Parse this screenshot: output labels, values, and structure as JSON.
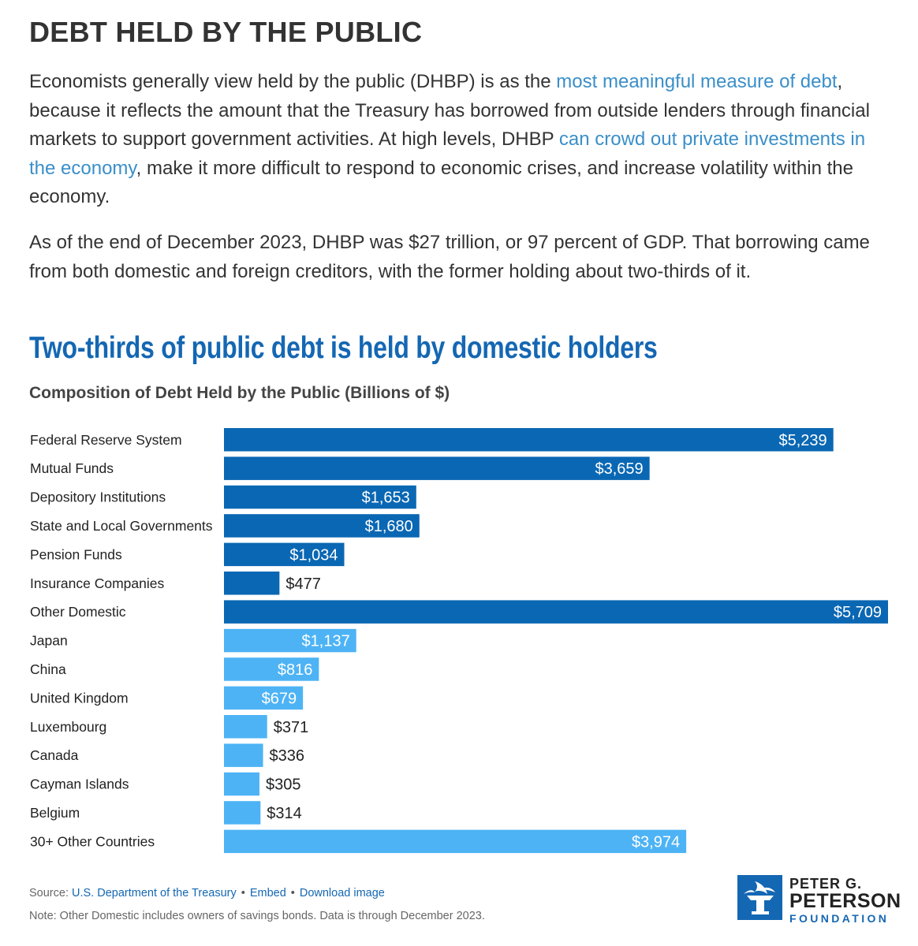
{
  "section": {
    "title": "DEBT HELD BY THE PUBLIC"
  },
  "paragraph1": {
    "text1": "Economists generally view held by the public (DHBP) is as the ",
    "link1": "most meaningful measure of debt",
    "text2": ", because it reflects the amount that the Treasury has borrowed from outside lenders through financial markets to support government activities. At high levels, DHBP ",
    "link2": "can crowd out private investments in the economy",
    "text3": ", make it more difficult to respond to economic crises, and increase volatility within the economy."
  },
  "paragraph2": {
    "text": "As of the end of December 2023, DHBP was $27 trillion, or 97 percent of GDP. That borrowing came from both domestic and foreign creditors, with the former holding about two-thirds of it."
  },
  "chart_data": {
    "type": "bar",
    "orientation": "horizontal",
    "title": "Two-thirds of public debt is held by domestic holders",
    "subtitle": "Composition of Debt Held by the Public (Billions of $)",
    "xlim": [
      0,
      5709
    ],
    "grid": false,
    "legend": "none",
    "colors": {
      "domestic": "#0a67b3",
      "foreign": "#4db3f5",
      "label_inside": "#ffffff",
      "label_outside": "#222222"
    },
    "categories": [
      "Federal Reserve System",
      "Mutual Funds",
      "Depository Institutions",
      "State and Local Governments",
      "Pension Funds",
      "Insurance Companies",
      "Other Domestic",
      "Japan",
      "China",
      "United Kingdom",
      "Luxembourg",
      "Canada",
      "Cayman Islands",
      "Belgium",
      "30+ Other Countries"
    ],
    "values": [
      5239,
      3659,
      1653,
      1680,
      1034,
      477,
      5709,
      1137,
      816,
      679,
      371,
      336,
      305,
      314,
      3974
    ],
    "value_labels": [
      "$5,239",
      "$3,659",
      "$1,653",
      "$1,680",
      "$1,034",
      "$477",
      "$5,709",
      "$1,137",
      "$816",
      "$679",
      "$371",
      "$336",
      "$305",
      "$314",
      "$3,974"
    ],
    "groups": [
      "domestic",
      "domestic",
      "domestic",
      "domestic",
      "domestic",
      "domestic",
      "domestic",
      "foreign",
      "foreign",
      "foreign",
      "foreign",
      "foreign",
      "foreign",
      "foreign",
      "foreign"
    ]
  },
  "footer": {
    "source_label": "Source: ",
    "source_link": "U.S. Department of the Treasury",
    "separator": "•",
    "embed_link": "Embed",
    "download_link": "Download image",
    "note": "Note: Other Domestic includes owners of savings bonds. Data is through December 2023."
  },
  "logo": {
    "line1": "PETER G.",
    "line2": "PETERSON",
    "line3": "FOUNDATION",
    "icon": "torch-icon"
  }
}
